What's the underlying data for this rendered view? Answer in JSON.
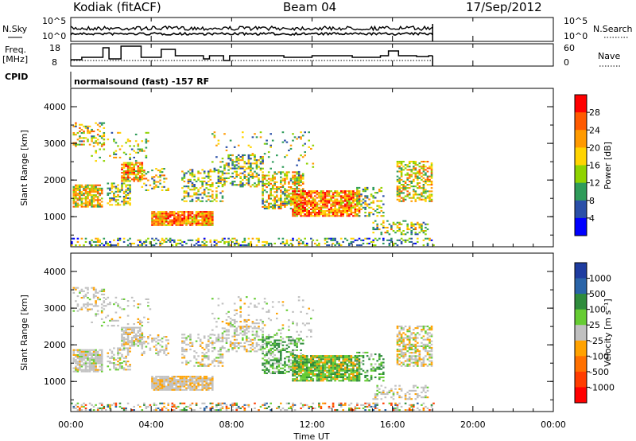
{
  "header": {
    "station": "Kodiak (fitACF)",
    "beam": "Beam 04",
    "date": "17/Sep/2012"
  },
  "status_panels": {
    "nsky_label": "N.Sky",
    "nsearch_label": "N.Search",
    "nsky_ticks": [
      "10^5",
      "10^0"
    ],
    "nsearch_ticks": [
      "10^5",
      "10^0"
    ],
    "freq_label": "Freq.",
    "freq_unit": "[MHz]",
    "freq_ticks": [
      "18",
      "8"
    ],
    "nave_label": "Nave",
    "nave_ticks": [
      "60",
      "0"
    ],
    "cpid_label": "CPID",
    "cpid_text": "normalsound (fast) -157 RF"
  },
  "chart_data": [
    {
      "type": "heatmap",
      "name": "power",
      "ylabel": "Slant Range [km]",
      "yticks": [
        "4000",
        "3000",
        "2000",
        "1000"
      ],
      "yrange": [
        180,
        4500
      ],
      "xrange_hours": [
        0,
        24
      ],
      "colorbar_label": "Power [dB]",
      "colorbar_ticks": [
        "28",
        "24",
        "20",
        "16",
        "12",
        "8",
        "4"
      ],
      "colorbar_colors": [
        "#ff0000",
        "#ff5a00",
        "#ff9a00",
        "#ffd400",
        "#8fd300",
        "#2f9c5a",
        "#2a4fa8",
        "#0000ff"
      ]
    },
    {
      "type": "heatmap",
      "name": "velocity",
      "ylabel": "Slant Range [km]",
      "yticks": [
        "4000",
        "3000",
        "2000",
        "1000"
      ],
      "yrange": [
        180,
        4500
      ],
      "xrange_hours": [
        0,
        24
      ],
      "colorbar_label": "Velocity [m s⁻¹]",
      "colorbar_ticks": [
        "1000",
        "500",
        "100",
        "25",
        "-25",
        "-100",
        "-500",
        "-1000"
      ],
      "colorbar_colors": [
        "#1e3ca0",
        "#2a64a8",
        "#2f8c3c",
        "#66cc33",
        "#c0c0c0",
        "#ffa200",
        "#ff7000",
        "#ff3c00",
        "#ff0000"
      ]
    }
  ],
  "xaxis": {
    "ticks": [
      "00:00",
      "04:00",
      "08:00",
      "12:00",
      "16:00",
      "20:00",
      "00:00"
    ],
    "label": "Time UT"
  }
}
